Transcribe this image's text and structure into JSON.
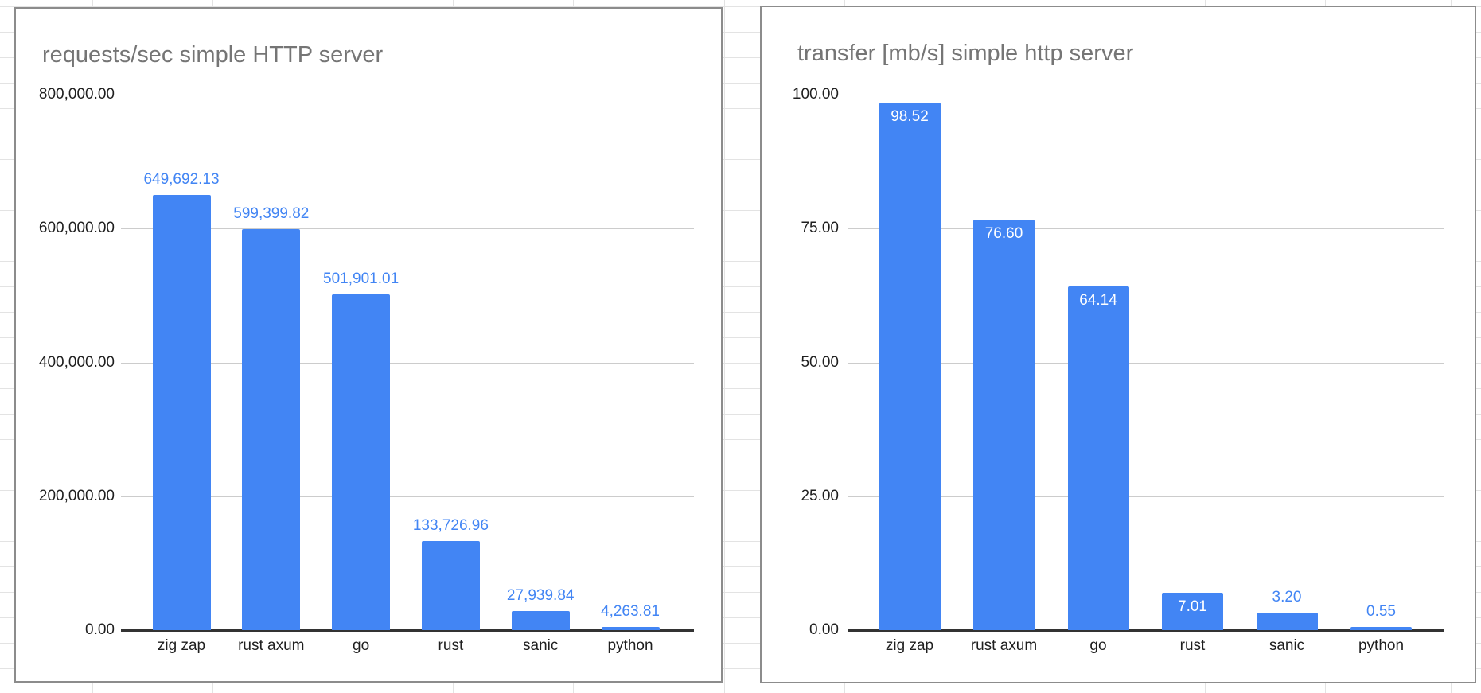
{
  "chart_data": [
    {
      "type": "bar",
      "title": "requests/sec simple HTTP server",
      "categories": [
        "zig zap",
        "rust axum",
        "go",
        "rust",
        "sanic",
        "python"
      ],
      "values": [
        649692.13,
        599399.82,
        501901.01,
        133726.96,
        27939.84,
        4263.81
      ],
      "value_labels": [
        "649,692.13",
        "599,399.82",
        "501,901.01",
        "133,726.96",
        "27,939.84",
        "4,263.81"
      ],
      "label_positions": [
        "above",
        "above",
        "above",
        "above",
        "above",
        "above"
      ],
      "xlabel": "",
      "ylabel": "",
      "ylim": [
        0,
        800000
      ],
      "yticks": [
        {
          "value": 800000,
          "label": "800,000.00"
        },
        {
          "value": 600000,
          "label": "600,000.00"
        },
        {
          "value": 400000,
          "label": "400,000.00"
        },
        {
          "value": 200000,
          "label": "200,000.00"
        },
        {
          "value": 0,
          "label": "0.00"
        }
      ],
      "grid": true,
      "legend": "none"
    },
    {
      "type": "bar",
      "title": "transfer [mb/s] simple http server",
      "categories": [
        "zig zap",
        "rust axum",
        "go",
        "rust",
        "sanic",
        "python"
      ],
      "values": [
        98.52,
        76.6,
        64.14,
        7.01,
        3.2,
        0.55
      ],
      "value_labels": [
        "98.52",
        "76.60",
        "64.14",
        "7.01",
        "3.20",
        "0.55"
      ],
      "label_positions": [
        "inside",
        "inside",
        "inside",
        "inside",
        "above",
        "above"
      ],
      "xlabel": "",
      "ylabel": "",
      "ylim": [
        0,
        100
      ],
      "yticks": [
        {
          "value": 100,
          "label": "100.00"
        },
        {
          "value": 75,
          "label": "75.00"
        },
        {
          "value": 50,
          "label": "50.00"
        },
        {
          "value": 25,
          "label": "25.00"
        },
        {
          "value": 0,
          "label": "0.00"
        }
      ],
      "grid": true,
      "legend": "none"
    }
  ],
  "colors": {
    "bar": "#4285f4",
    "data_label_above": "#4285f4",
    "data_label_inside": "#ffffff",
    "title": "#757575",
    "axis_label": "#1f1f1f",
    "gridline": "#cccccc",
    "axis_line": "#333333",
    "card_border": "#8c8c8c",
    "sheet_gridline": "#e3e3e3",
    "background": "#ffffff"
  }
}
